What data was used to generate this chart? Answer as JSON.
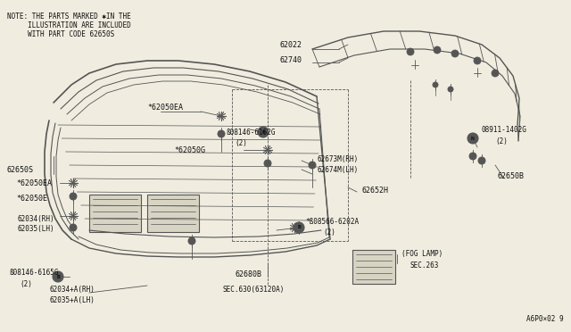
{
  "background_color": "#f0ede0",
  "line_color": "#555555",
  "text_color": "#111111",
  "note_lines": [
    "NOTE: THE PARTS MARKED ✱IN THE",
    "     ILLUSTRATION ARE INCLUDED",
    "     WITH PART CODE 62650S"
  ],
  "diagram_id": "A6P0×02 9",
  "font_size": 6.0,
  "small_font": 5.5
}
